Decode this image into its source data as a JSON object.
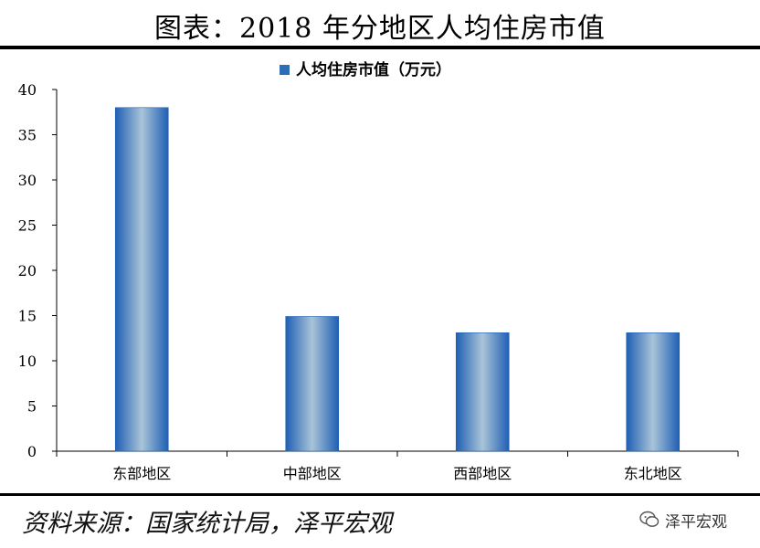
{
  "header": {
    "title": "图表：2018 年分地区人均住房市值"
  },
  "footer": {
    "source": "资料来源：国家统计局，泽平宏观",
    "brand": "泽平宏观"
  },
  "chart_data": {
    "type": "bar",
    "categories": [
      "东部地区",
      "中部地区",
      "西部地区",
      "东北地区"
    ],
    "series": [
      {
        "name": "人均住房市值（万元）",
        "values": [
          38,
          14.9,
          13.1,
          13.1
        ]
      }
    ],
    "title": "",
    "xlabel": "",
    "ylabel": "",
    "ylim": [
      0,
      40
    ],
    "yticks": [
      0,
      5,
      10,
      15,
      20,
      25,
      30,
      35,
      40
    ],
    "grid": false,
    "legend": "top-center",
    "colors": {
      "bar_edge": "#1f5fb4",
      "bar_center": "#a9c4d8",
      "legend": "#2c6db5"
    }
  }
}
